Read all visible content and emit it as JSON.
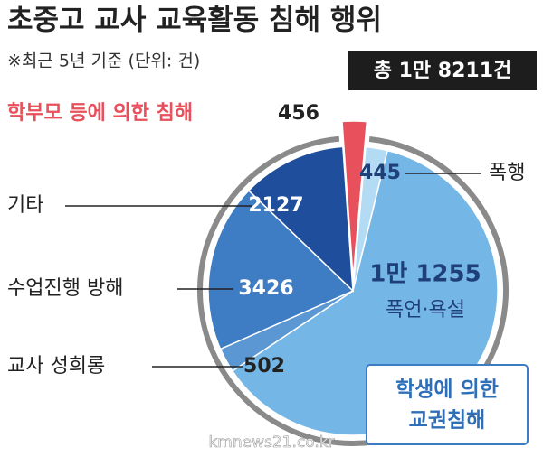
{
  "chart_data": {
    "type": "pie",
    "title": "초중고 교사 교육활동 침해 행위",
    "subtitle": "※최근 5년 기준 (단위: 건)",
    "total_label": "총 1만 8211건",
    "group_label": [
      "학생에 의한",
      "교권침해"
    ],
    "source": "kmnews21.co.kr",
    "categories": [
      "학부모 등에 의한 침해",
      "폭행",
      "폭언·욕설",
      "교사 성희롱",
      "수업진행 방해",
      "기타"
    ],
    "values": [
      456,
      445,
      11255,
      502,
      3426,
      2127
    ],
    "value_labels": [
      "456",
      "445",
      "1만 1255",
      "502",
      "3426",
      "2127"
    ],
    "colors": [
      "#e8505b",
      "#b3dcf4",
      "#74b6e6",
      "#5b97d2",
      "#3e7cc3",
      "#1f4f9c"
    ]
  }
}
